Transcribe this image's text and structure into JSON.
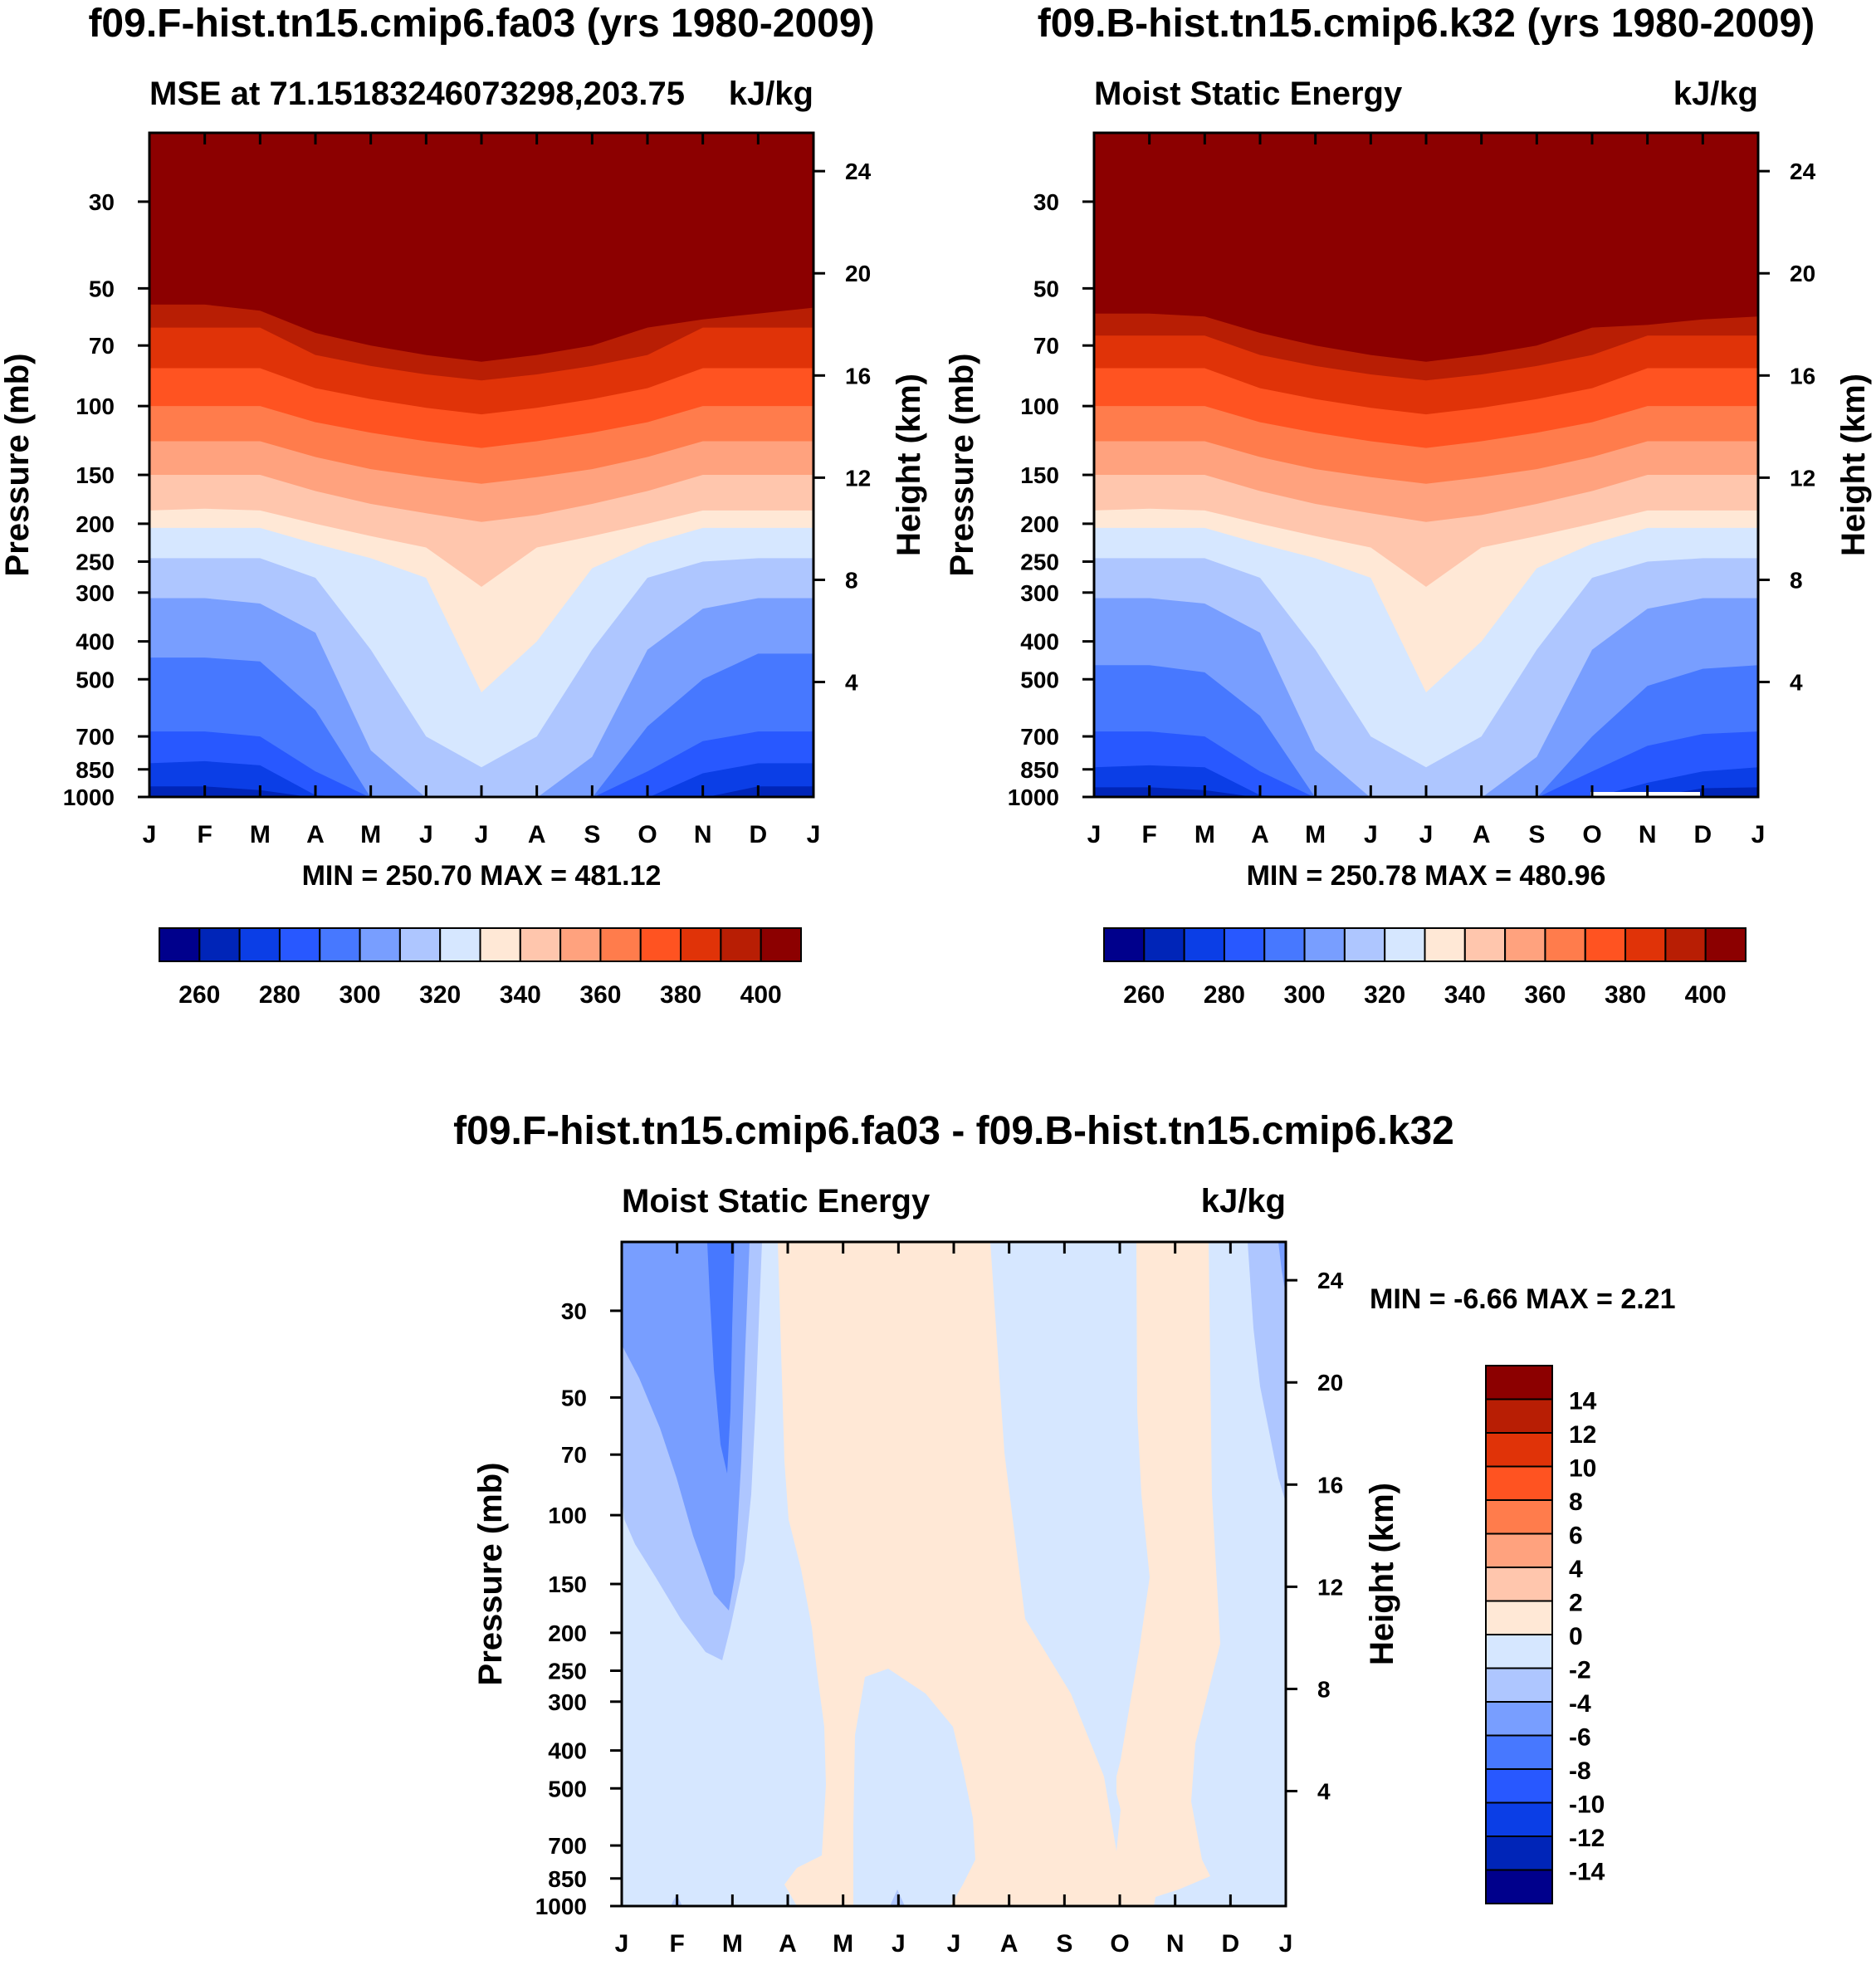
{
  "colors": {
    "mse_palette": [
      "#00008c",
      "#0025b8",
      "#0b3ee6",
      "#2858ff",
      "#4778ff",
      "#789eff",
      "#aec6ff",
      "#d6e7ff",
      "#ffe8d6",
      "#ffc6ad",
      "#ffa27e",
      "#ff7c4c",
      "#ff5321",
      "#e03308",
      "#b81e04",
      "#8c0000"
    ],
    "diff_palette": [
      "#00008c",
      "#0025b8",
      "#0b3ee6",
      "#2858ff",
      "#4778ff",
      "#789eff",
      "#aec6ff",
      "#d6e7ff",
      "#ffe8d6",
      "#ffc6ad",
      "#ffa27e",
      "#ff7c4c",
      "#ff5321",
      "#e03308",
      "#b81e04",
      "#8c0000"
    ]
  },
  "axes": {
    "months": [
      "J",
      "F",
      "M",
      "A",
      "M",
      "J",
      "J",
      "A",
      "S",
      "O",
      "N",
      "D",
      "J"
    ],
    "pressure_ticks": [
      "30",
      "50",
      "70",
      "100",
      "150",
      "200",
      "250",
      "300",
      "400",
      "500",
      "700",
      "850",
      "1000"
    ],
    "pressure_values": [
      30,
      50,
      70,
      100,
      150,
      200,
      250,
      300,
      400,
      500,
      700,
      850,
      1000
    ],
    "height_ticks": [
      "24",
      "20",
      "16",
      "12",
      "8",
      "4"
    ],
    "height_values": [
      24,
      20,
      16,
      12,
      8,
      4
    ],
    "pressure_label": "Pressure (mb)",
    "height_label": "Height (km)"
  },
  "chart_data": [
    {
      "type": "heatmap",
      "id": "p1",
      "title": "f09.F-hist.tn15.cmip6.fa03 (yrs 1980-2009)",
      "left_subtitle": "MSE at 71.15183246073298,203.75",
      "right_subtitle": "kJ/kg",
      "stats": "MIN = 250.70 MAX = 481.12",
      "legend_labels": [
        "260",
        "280",
        "300",
        "320",
        "340",
        "360",
        "380",
        "400"
      ],
      "contour_levels": [
        250,
        260,
        270,
        280,
        290,
        300,
        310,
        320,
        330,
        340,
        350,
        360,
        370,
        380,
        390,
        400,
        410
      ],
      "ylim": [
        1000,
        20
      ],
      "note": "contour band lower-boundary pressures (mb) for each month J..J (13 columns)",
      "bands": [
        [
          1005,
          1000,
          1000,
          1005,
          1005,
          1005,
          1005,
          1005,
          1005,
          1005,
          1005,
          1000,
          1000
        ],
        [
          940,
          940,
          960,
          1005,
          1005,
          1005,
          1005,
          1005,
          1005,
          1005,
          1005,
          940,
          940
        ],
        [
          820,
          810,
          830,
          990,
          1005,
          1005,
          1005,
          1005,
          1005,
          1005,
          870,
          820,
          820
        ],
        [
          680,
          680,
          700,
          860,
          1005,
          1005,
          1005,
          1005,
          1005,
          860,
          720,
          680,
          680
        ],
        [
          440,
          440,
          450,
          600,
          1005,
          1005,
          1005,
          1005,
          1005,
          660,
          500,
          430,
          430
        ],
        [
          310,
          310,
          320,
          380,
          760,
          1005,
          1005,
          1005,
          790,
          420,
          330,
          310,
          310
        ],
        [
          245,
          245,
          245,
          275,
          420,
          700,
          840,
          700,
          420,
          275,
          250,
          245,
          245
        ],
        [
          205,
          205,
          205,
          225,
          245,
          275,
          540,
          400,
          260,
          225,
          205,
          205,
          205
        ],
        [
          185,
          183,
          185,
          200,
          215,
          230,
          290,
          230,
          215,
          200,
          185,
          185,
          185
        ],
        [
          150,
          150,
          150,
          165,
          178,
          188,
          198,
          190,
          178,
          165,
          150,
          150,
          150
        ],
        [
          123,
          123,
          123,
          135,
          145,
          152,
          158,
          152,
          145,
          135,
          123,
          123,
          123
        ],
        [
          100,
          100,
          100,
          110,
          117,
          123,
          128,
          123,
          117,
          110,
          100,
          100,
          100
        ],
        [
          80,
          80,
          80,
          90,
          96,
          101,
          105,
          101,
          96,
          90,
          80,
          80,
          80
        ],
        [
          63,
          63,
          63,
          74,
          79,
          83,
          86,
          83,
          79,
          74,
          63,
          63,
          63
        ],
        [
          55,
          55,
          57,
          65,
          70,
          74,
          77,
          74,
          70,
          63,
          60,
          58,
          56
        ]
      ]
    },
    {
      "type": "heatmap",
      "id": "p2",
      "title": "f09.B-hist.tn15.cmip6.k32 (yrs 1980-2009)",
      "left_subtitle": "Moist Static Energy",
      "right_subtitle": "kJ/kg",
      "stats": "MIN = 250.78 MAX = 480.96",
      "legend_labels": [
        "260",
        "280",
        "300",
        "320",
        "340",
        "360",
        "380",
        "400"
      ],
      "contour_levels": [
        250,
        260,
        270,
        280,
        290,
        300,
        310,
        320,
        330,
        340,
        350,
        360,
        370,
        380,
        390,
        400,
        410
      ],
      "ylim": [
        1000,
        20
      ],
      "note": "contour band lower-boundary pressures (mb) for each month J..J (13 columns)",
      "bands": [
        [
          1005,
          1000,
          1000,
          1005,
          1005,
          1005,
          1005,
          1005,
          1005,
          1005,
          1005,
          1000,
          1000
        ],
        [
          945,
          945,
          960,
          1005,
          1005,
          1005,
          1005,
          1005,
          1005,
          1005,
          1005,
          950,
          945
        ],
        [
          840,
          830,
          840,
          990,
          1005,
          1005,
          1005,
          1005,
          1005,
          1005,
          920,
          860,
          840
        ],
        [
          680,
          680,
          700,
          860,
          1005,
          1005,
          1005,
          1005,
          1005,
          860,
          740,
          690,
          680
        ],
        [
          460,
          460,
          480,
          620,
          1005,
          1005,
          1005,
          1005,
          1005,
          700,
          520,
          470,
          460
        ],
        [
          310,
          310,
          320,
          380,
          760,
          1005,
          1005,
          1005,
          790,
          420,
          330,
          310,
          310
        ],
        [
          245,
          245,
          245,
          275,
          420,
          700,
          840,
          700,
          420,
          275,
          250,
          245,
          245
        ],
        [
          205,
          205,
          205,
          225,
          245,
          275,
          540,
          400,
          260,
          225,
          205,
          205,
          205
        ],
        [
          185,
          183,
          185,
          200,
          215,
          230,
          290,
          230,
          215,
          200,
          185,
          185,
          185
        ],
        [
          150,
          150,
          150,
          165,
          178,
          188,
          198,
          190,
          178,
          165,
          150,
          150,
          150
        ],
        [
          123,
          123,
          123,
          135,
          145,
          152,
          158,
          152,
          145,
          135,
          123,
          123,
          123
        ],
        [
          100,
          100,
          100,
          110,
          117,
          123,
          128,
          123,
          117,
          110,
          100,
          100,
          100
        ],
        [
          80,
          80,
          80,
          90,
          96,
          101,
          105,
          101,
          96,
          90,
          80,
          80,
          80
        ],
        [
          66,
          66,
          66,
          74,
          79,
          83,
          86,
          83,
          79,
          74,
          66,
          66,
          66
        ],
        [
          58,
          58,
          59,
          65,
          70,
          74,
          77,
          74,
          70,
          63,
          62,
          60,
          59
        ]
      ]
    },
    {
      "type": "heatmap",
      "id": "p3",
      "title": "f09.F-hist.tn15.cmip6.fa03 - f09.B-hist.tn15.cmip6.k32",
      "left_subtitle": "Moist Static Energy",
      "right_subtitle": "kJ/kg",
      "stats": "MIN =  -6.66 MAX =   2.21",
      "legend_labels": [
        "14",
        "12",
        "10",
        "8",
        "6",
        "4",
        "2",
        "0",
        "-2",
        "-4",
        "-6",
        "-8",
        "-10",
        "-12",
        "-14"
      ],
      "contour_levels": [
        -16,
        -14,
        -12,
        -10,
        -8,
        -6,
        -4,
        -2,
        0,
        2,
        4,
        6,
        8,
        10,
        12,
        14,
        16
      ],
      "ylim": [
        1000,
        20
      ],
      "field_description": "mostly 0 to -2 with negative (-6 to -2) tongues near F-M upper levels; 0 to 2 bands Apr-Jul and Oct-Nov"
    }
  ]
}
